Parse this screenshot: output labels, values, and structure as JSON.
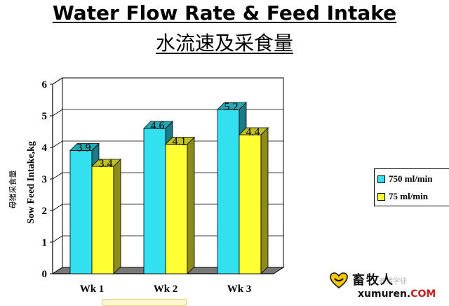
{
  "title": "Water Flow Rate & Feed Intake",
  "subtitle": "水流速及采食量",
  "chart_data": {
    "type": "bar",
    "categories": [
      "Wk 1",
      "Wk 2",
      "Wk 3"
    ],
    "series": [
      {
        "name": "750 ml/min",
        "values": [
          3.9,
          4.6,
          5.2
        ],
        "color": "#33e0f0",
        "labels": [
          "3.9",
          "4.6",
          "5.2"
        ]
      },
      {
        "name": "75 ml/min",
        "values": [
          3.4,
          4.1,
          4.4
        ],
        "color": "#ffff33",
        "labels": [
          "3.4",
          "4.1",
          "4.4"
        ]
      }
    ],
    "ylabel": "Sow Feed Intake,kg",
    "ylabel_cn": "母猪采食量",
    "ylim": [
      0,
      6
    ],
    "yticks": [
      "0",
      "1",
      "2",
      "3",
      "4",
      "5",
      "6"
    ],
    "grid": true,
    "legend_position": "right"
  },
  "legend": {
    "item1": "750 ml/min",
    "item2": "75 ml/min"
  },
  "watermark": {
    "brand": "畜牧人",
    "url_main": "xumuren.",
    "url_suffix": "COM",
    "faint": "养猪学徒"
  },
  "colors": {
    "series1": "#33e0f0",
    "series2": "#ffff33",
    "floor": "#777777",
    "plot_bg": "#ffffff"
  }
}
